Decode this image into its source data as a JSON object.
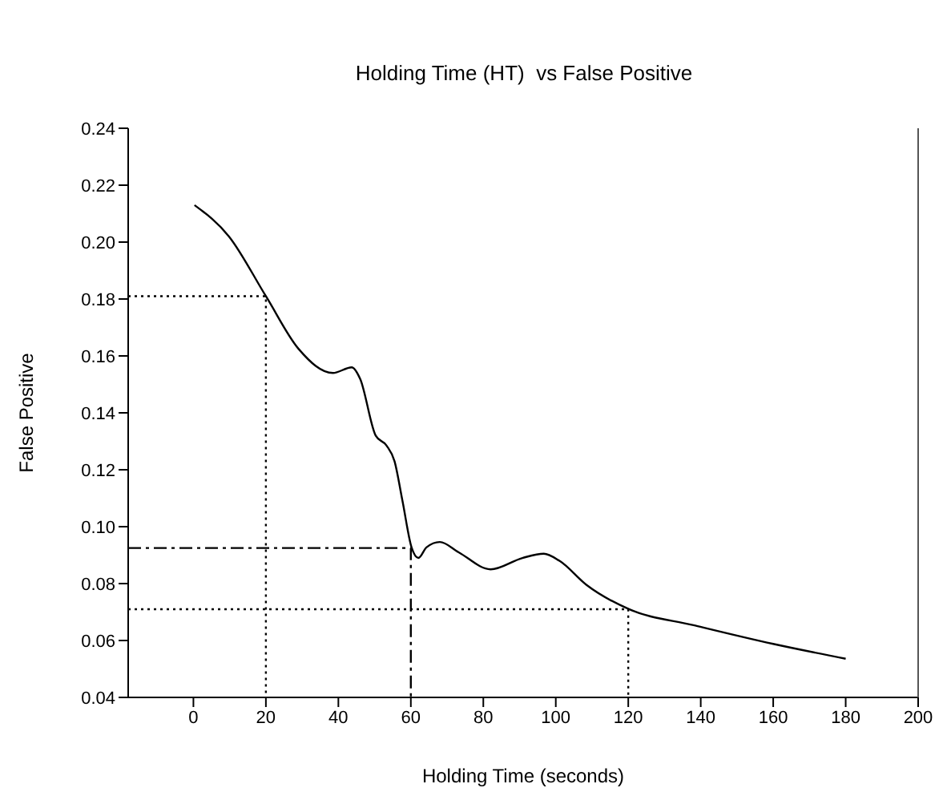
{
  "chart_data": {
    "type": "line",
    "title": "Holding Time (HT)  vs False Positive",
    "xlabel": "Holding Time (seconds)",
    "ylabel": "False Positive",
    "xlim": [
      -18,
      200
    ],
    "xticks": [
      0,
      20,
      40,
      60,
      80,
      100,
      120,
      140,
      160,
      180,
      200
    ],
    "ylim": [
      0.04,
      0.24
    ],
    "yticks": [
      0.04,
      0.06,
      0.08,
      {
        "value": 0.1,
        "label": "0.10"
      },
      0.12,
      0.14,
      0.16,
      0.18,
      {
        "value": 0.2,
        "label": "0.20"
      },
      0.22,
      0.24
    ],
    "series": [
      {
        "color": "#000000",
        "line_style": "solid",
        "x": [
          0.3,
          9.8,
          20,
          29,
          38.5,
          43.7,
          46,
          50.3,
          53.3,
          55.5,
          57.7,
          60.2,
          62.1,
          64.3,
          68,
          73.2,
          82,
          90.8,
          96.7,
          101,
          108.5,
          120.2,
          138,
          160,
          180
        ],
        "values": [
          0.213,
          0.202,
          0.181,
          0.1625,
          0.154,
          0.156,
          0.152,
          0.132,
          0.1285,
          0.123,
          0.109,
          0.0927,
          0.089,
          0.0927,
          0.0946,
          0.091,
          0.085,
          0.089,
          0.0905,
          0.088,
          0.0795,
          0.071,
          0.0654,
          0.0588,
          0.0536
        ]
      },
      {
        "color": "#000000",
        "line_style": "dotted",
        "x": [
          -18,
          20,
          20
        ],
        "values": [
          0.181,
          0.181,
          0.04
        ]
      },
      {
        "color": "#000000",
        "line_style": "dashdot",
        "x": [
          -18,
          60,
          60
        ],
        "values": [
          0.0925,
          0.0925,
          0.04
        ]
      },
      {
        "color": "#000000",
        "line_style": "dotted",
        "x": [
          -18,
          120,
          120
        ],
        "values": [
          0.071,
          0.071,
          0.04
        ]
      }
    ]
  }
}
